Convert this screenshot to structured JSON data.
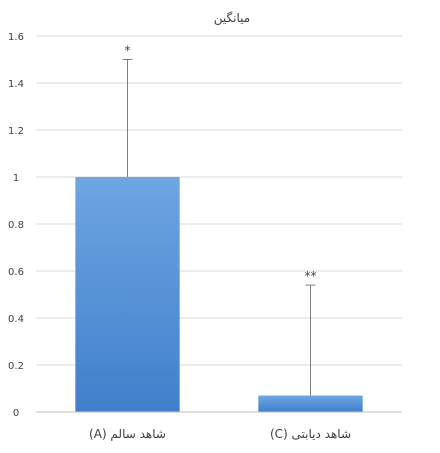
{
  "chart_data": {
    "type": "bar",
    "title": "میانگین",
    "xlabel": "",
    "ylabel": "",
    "ylim": [
      0,
      1.6
    ],
    "grid": true,
    "legend": "none",
    "y_ticks": [
      {
        "value": 0,
        "label": "0"
      },
      {
        "value": 0.2,
        "label": "0.2"
      },
      {
        "value": 0.4,
        "label": "0.4"
      },
      {
        "value": 0.6,
        "label": "0.6"
      },
      {
        "value": 0.8,
        "label": "0.8"
      },
      {
        "value": 1.0,
        "label": "1"
      },
      {
        "value": 1.2,
        "label": "1.2"
      },
      {
        "value": 1.4,
        "label": "1.4"
      },
      {
        "value": 1.6,
        "label": "1.6"
      }
    ],
    "categories": [
      "شاهد سالم (A)",
      "شاهد دیابتی (C)"
    ],
    "values": [
      1.0,
      0.07
    ],
    "error_upper": [
      1.5,
      0.54
    ],
    "annotations": [
      "*",
      "**"
    ],
    "colors": {
      "bar": "#4a8bd6",
      "bar_top": "#6fa6e2",
      "grid": "#d9d9d9",
      "text": "#404040",
      "error": "#7f7f7f"
    }
  }
}
